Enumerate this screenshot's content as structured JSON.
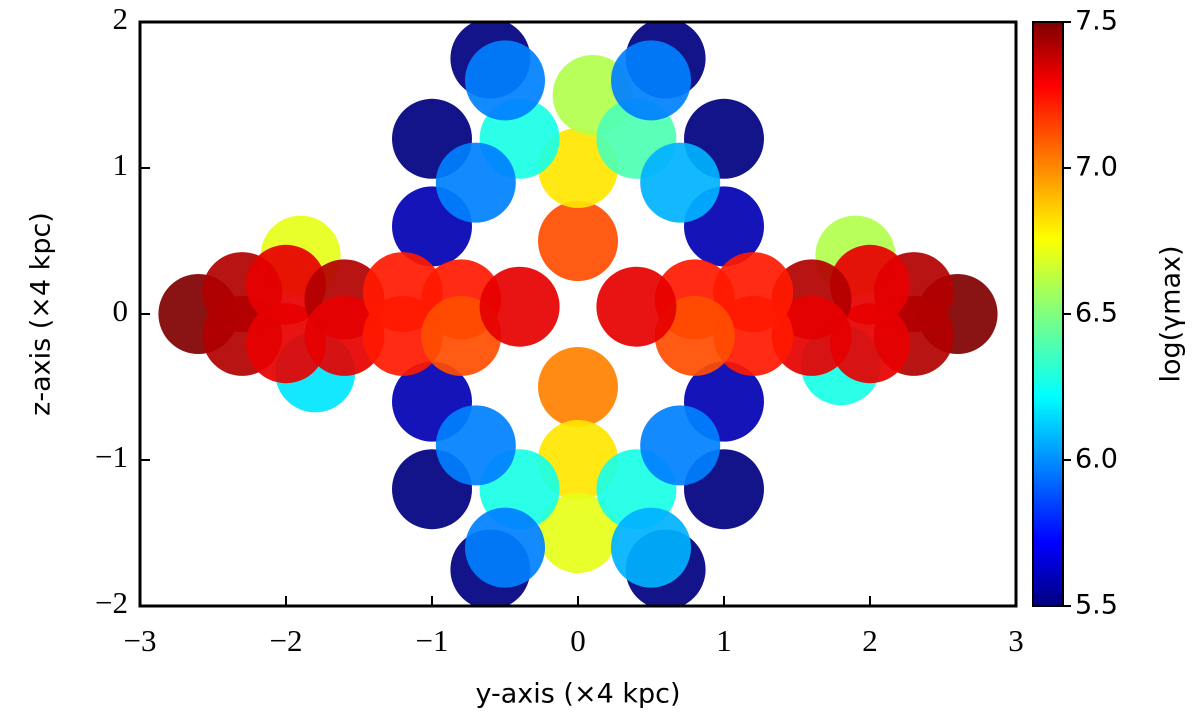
{
  "chart_data": {
    "type": "scatter",
    "x_label": "y-axis (×4 kpc)",
    "y_label": "z-axis (×4 kpc)",
    "colorbar_label": "log(γmax)",
    "xlim": [
      -3,
      3
    ],
    "ylim": [
      -2,
      2
    ],
    "xticks": [
      {
        "value": -3,
        "label": "−3"
      },
      {
        "value": -2,
        "label": "−2"
      },
      {
        "value": -1,
        "label": "−1"
      },
      0,
      1,
      2,
      3
    ],
    "yticks": [
      {
        "value": -2,
        "label": "−2"
      },
      {
        "value": -1,
        "label": "−1"
      },
      0,
      1,
      2
    ],
    "clim": [
      5.5,
      7.5
    ],
    "cticks": [
      5.5,
      {
        "value": 6,
        "label": "6.0"
      },
      6.5,
      {
        "value": 7,
        "label": "7.0"
      },
      7.5
    ],
    "colormap": "jet",
    "x": [
      -1.0,
      1.0,
      -1.0,
      1.0,
      -0.6,
      0.6,
      -0.6,
      0.6,
      -1.0,
      1.0,
      -1.0,
      1.0,
      0,
      0,
      0,
      0,
      0.1,
      0,
      -0.4,
      0.4,
      -0.4,
      0.4,
      -0.7,
      0.7,
      -0.7,
      0.7,
      -0.5,
      0.5,
      -0.5,
      0.5,
      -1.9,
      1.9,
      -1.8,
      1.8,
      -2.6,
      -2.3,
      -2.3,
      -2.0,
      -2.0,
      -1.6,
      -1.6,
      -1.2,
      -1.2,
      -0.8,
      -0.8,
      -0.4,
      2.6,
      2.3,
      2.3,
      2.0,
      2.0,
      1.6,
      1.6,
      1.2,
      1.2,
      0.8,
      0.8,
      0.4
    ],
    "y": [
      1.2,
      1.2,
      -1.2,
      -1.2,
      1.75,
      1.75,
      -1.75,
      -1.75,
      0.6,
      0.6,
      -0.6,
      -0.6,
      0.5,
      -0.5,
      1.0,
      -1.0,
      1.5,
      -1.5,
      1.2,
      1.2,
      -1.2,
      -1.2,
      0.9,
      0.9,
      -0.9,
      -0.9,
      1.6,
      1.6,
      -1.6,
      -1.6,
      0.4,
      0.4,
      -0.4,
      -0.35,
      0,
      0.15,
      -0.15,
      0.2,
      -0.2,
      0.1,
      -0.15,
      0.15,
      -0.15,
      0.1,
      -0.15,
      0.05,
      0,
      0.15,
      -0.15,
      0.2,
      -0.2,
      0.1,
      -0.15,
      0.15,
      -0.15,
      0.1,
      -0.15,
      0.05
    ],
    "c": [
      5.5,
      5.5,
      5.5,
      5.5,
      5.5,
      5.5,
      5.5,
      5.5,
      5.6,
      5.6,
      5.6,
      5.6,
      7.1,
      7.0,
      6.8,
      6.8,
      6.6,
      6.7,
      6.3,
      6.4,
      6.3,
      6.3,
      6.0,
      6.1,
      6.0,
      6.0,
      6.0,
      6.0,
      6.0,
      6.1,
      6.7,
      6.6,
      6.2,
      6.3,
      7.5,
      7.4,
      7.4,
      7.3,
      7.3,
      7.4,
      7.3,
      7.2,
      7.2,
      7.2,
      7.1,
      7.3,
      7.5,
      7.4,
      7.4,
      7.3,
      7.3,
      7.4,
      7.3,
      7.2,
      7.2,
      7.2,
      7.1,
      7.3
    ]
  }
}
